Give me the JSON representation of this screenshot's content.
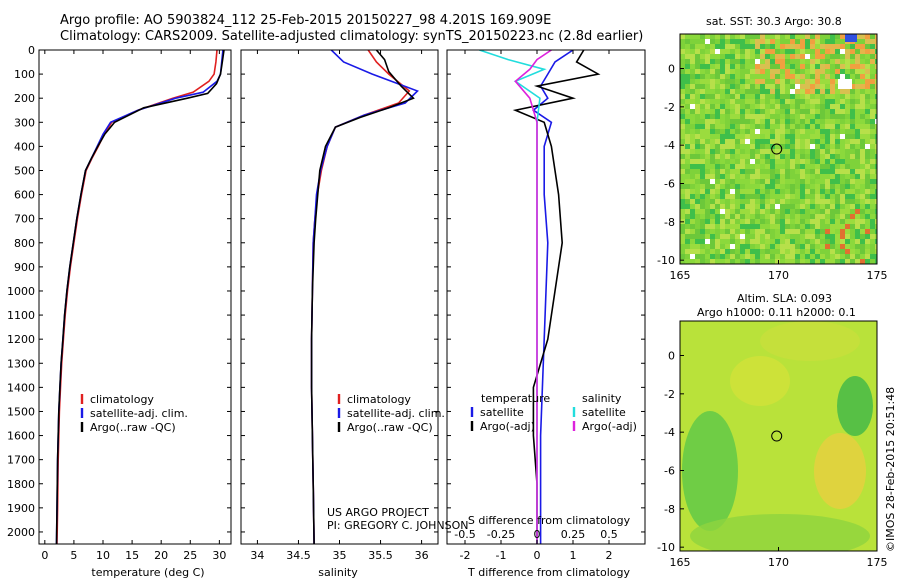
{
  "header": {
    "title_line1": "Argo profile: AO 5903824_112 25-Feb-2015 20150227_98 4.201S 169.909E",
    "title_line2": "Climatology: CARS2009. Satellite-adjusted climatology: synTS_20150223.nc (2.8d earlier)"
  },
  "credits": {
    "project": "US ARGO PROJECT",
    "pi": "PI: GREGORY C. JOHNSON",
    "stamp": "©IMOS 28-Feb-2015 20:51:48"
  },
  "colors": {
    "climatology": "#e02020",
    "satellite": "#1a1ae6",
    "argo": "#000000",
    "salinity_satellite": "#22dddd",
    "salinity_argo": "#dd22dd"
  },
  "chart_data": [
    {
      "id": "temperature",
      "type": "line",
      "xlabel": "temperature (deg C)",
      "ylabel": "",
      "xlim": [
        -1,
        32
      ],
      "ylim": [
        2050,
        0
      ],
      "xticks": [
        0,
        5,
        10,
        15,
        20,
        25,
        30
      ],
      "yticks": [
        0,
        100,
        200,
        300,
        400,
        500,
        600,
        700,
        800,
        900,
        1000,
        1100,
        1200,
        1300,
        1400,
        1500,
        1600,
        1700,
        1800,
        1900,
        2000
      ],
      "legend": [
        "climatology",
        "satellite-adj. clim.",
        "Argo(..raw -QC)"
      ],
      "series": [
        {
          "name": "climatology",
          "color": "#e02020",
          "x": [
            29.6,
            29.4,
            29.1,
            28.2,
            25.5,
            22.0,
            16.0,
            11.5,
            10.2,
            9.2,
            8.1,
            7.1,
            6.3,
            5.6,
            5.0,
            4.4,
            3.9,
            3.5,
            3.2,
            2.9,
            2.7,
            2.5,
            2.3,
            2.2,
            2.1
          ],
          "y": [
            0,
            50,
            100,
            130,
            175,
            200,
            250,
            300,
            350,
            400,
            450,
            500,
            600,
            700,
            800,
            900,
            1000,
            1100,
            1200,
            1300,
            1400,
            1500,
            1700,
            1900,
            2050
          ]
        },
        {
          "name": "satellite-adj. clim.",
          "color": "#1a1ae6",
          "x": [
            30.6,
            30.4,
            30.2,
            29.6,
            27.2,
            22.5,
            16.0,
            11.3,
            10.0,
            9.0,
            8.0,
            7.0,
            6.2,
            5.5,
            4.9,
            4.3,
            3.8,
            3.4,
            3.1,
            2.8,
            2.6,
            2.4,
            2.2,
            2.1,
            2.0
          ],
          "y": [
            0,
            50,
            100,
            130,
            175,
            200,
            250,
            300,
            350,
            400,
            450,
            500,
            600,
            700,
            800,
            900,
            1000,
            1100,
            1200,
            1300,
            1400,
            1500,
            1700,
            1900,
            2050
          ]
        },
        {
          "name": "Argo(..raw -QC)",
          "color": "#000000",
          "x": [
            30.8,
            30.5,
            30.2,
            29.5,
            28.0,
            24.5,
            17.0,
            12.0,
            10.3,
            9.1,
            8.0,
            7.0,
            6.2,
            5.5,
            4.9,
            4.3,
            3.8,
            3.4,
            3.1,
            2.8,
            2.6,
            2.4,
            2.2,
            2.1,
            2.0
          ],
          "y": [
            0,
            50,
            100,
            140,
            180,
            200,
            240,
            300,
            350,
            400,
            450,
            500,
            600,
            700,
            800,
            900,
            1000,
            1100,
            1200,
            1300,
            1400,
            1500,
            1700,
            1900,
            2050
          ]
        }
      ]
    },
    {
      "id": "salinity",
      "type": "line",
      "xlabel": "salinity",
      "ylabel": "",
      "xlim": [
        33.8,
        36.2
      ],
      "ylim": [
        2050,
        0
      ],
      "xticks": [
        34,
        34.5,
        35,
        35.5,
        36
      ],
      "xticklabels": [
        "34",
        "34.5",
        "35",
        "35.5",
        "36"
      ],
      "legend": [
        "climatology",
        "satellite-adj. clim.",
        "Argo(..raw -QC)"
      ],
      "series": [
        {
          "name": "climatology",
          "color": "#e02020",
          "x": [
            35.35,
            35.45,
            35.6,
            35.85,
            35.72,
            35.3,
            34.95,
            34.85,
            34.78,
            34.73,
            34.7,
            34.68,
            34.67,
            34.66,
            34.66,
            34.67,
            34.68,
            34.69
          ],
          "y": [
            0,
            50,
            100,
            170,
            220,
            270,
            320,
            400,
            500,
            600,
            700,
            800,
            1000,
            1200,
            1400,
            1600,
            1800,
            2050
          ]
        },
        {
          "name": "satellite-adj. clim.",
          "color": "#1a1ae6",
          "x": [
            34.9,
            35.05,
            35.4,
            35.95,
            35.8,
            35.3,
            34.95,
            34.85,
            34.77,
            34.72,
            34.7,
            34.68,
            34.67,
            34.66,
            34.66,
            34.67,
            34.68,
            34.69
          ],
          "y": [
            0,
            50,
            100,
            170,
            220,
            270,
            320,
            400,
            500,
            600,
            700,
            800,
            1000,
            1200,
            1400,
            1600,
            1800,
            2050
          ]
        },
        {
          "name": "Argo(..raw -QC)",
          "color": "#000000",
          "x": [
            35.45,
            35.55,
            35.6,
            35.75,
            35.9,
            35.6,
            35.25,
            34.95,
            34.83,
            34.76,
            34.71,
            34.69,
            34.67,
            34.66,
            34.66,
            34.67,
            34.68,
            34.69
          ],
          "y": [
            0,
            40,
            90,
            150,
            200,
            240,
            280,
            320,
            400,
            500,
            700,
            800,
            1000,
            1200,
            1400,
            1600,
            1800,
            2050
          ]
        }
      ]
    },
    {
      "id": "difference",
      "type": "line",
      "xlabel": "T difference from climatology",
      "xlabel_top": "S difference from climatology",
      "xlim": [
        -2.5,
        3.0
      ],
      "ylim": [
        2050,
        0
      ],
      "xticks_T": [
        -2,
        -1,
        0,
        1,
        2
      ],
      "xticks_S": [
        -0.5,
        -0.25,
        0,
        0.25,
        0.5
      ],
      "xticks_S_labels": [
        "-0.5",
        "-0.25",
        "0",
        "0.25",
        "0.5"
      ],
      "legend_T_title": "temperature",
      "legend_S_title": "salinity",
      "legend": [
        "satellite",
        "Argo(-adj)",
        "satellite",
        "Argo(-adj)"
      ],
      "series": [
        {
          "name": "satellite",
          "group": "temperature",
          "color": "#1a1ae6",
          "x": [
            1.0,
            0.5,
            0.3,
            0.1,
            0.3,
            -0.1,
            0.4,
            0.2,
            0.2,
            0.3,
            0.25,
            0.2,
            0.15,
            0.1,
            0.1,
            0.1
          ],
          "y": [
            0,
            50,
            100,
            150,
            200,
            250,
            300,
            400,
            600,
            800,
            1000,
            1200,
            1400,
            1600,
            1800,
            2050
          ]
        },
        {
          "name": "Argo(-adj)",
          "group": "temperature",
          "color": "#000000",
          "x": [
            1.3,
            1.1,
            1.7,
            0.0,
            1.0,
            -0.6,
            0.2,
            0.4,
            0.6,
            0.7,
            0.5,
            0.3,
            -0.1,
            -0.1,
            0.0,
            0.0
          ],
          "y": [
            0,
            50,
            100,
            150,
            200,
            250,
            300,
            400,
            600,
            800,
            1000,
            1200,
            1400,
            1600,
            1800,
            2050
          ]
        },
        {
          "name": "satellite",
          "group": "salinity",
          "color": "#22dddd",
          "x": [
            -0.4,
            -0.2,
            0.05,
            -0.15,
            0.02,
            0.0,
            0.0,
            0.0,
            0.0,
            0.0,
            0.0
          ],
          "y": [
            0,
            40,
            80,
            130,
            200,
            300,
            500,
            800,
            1200,
            1600,
            2050
          ]
        },
        {
          "name": "Argo(-adj)",
          "group": "salinity",
          "color": "#dd22dd",
          "x": [
            0.1,
            0.0,
            -0.05,
            -0.15,
            -0.05,
            0.0,
            0.0,
            0.0,
            0.0,
            0.0,
            0.0
          ],
          "y": [
            0,
            40,
            80,
            130,
            200,
            300,
            500,
            800,
            1200,
            1600,
            2050
          ]
        }
      ]
    },
    {
      "id": "sst_map",
      "type": "heatmap",
      "title": "sat. SST: 30.3 Argo: 30.8",
      "xlim": [
        165,
        175
      ],
      "ylim": [
        -10.2,
        1.8
      ],
      "xticks": [
        165,
        170,
        175
      ],
      "yticks": [
        0,
        -2,
        -4,
        -6,
        -8,
        -10
      ],
      "marker": {
        "lon": 169.909,
        "lat": -4.201
      }
    },
    {
      "id": "sla_map",
      "type": "heatmap",
      "title_line1": "Altim. SLA: 0.093",
      "title_line2": "Argo h1000: 0.11 h2000: 0.1",
      "xlim": [
        165,
        175
      ],
      "ylim": [
        -10.2,
        1.8
      ],
      "xticks": [
        165,
        170,
        175
      ],
      "yticks": [
        0,
        -2,
        -4,
        -6,
        -8,
        -10
      ],
      "marker": {
        "lon": 169.909,
        "lat": -4.201
      }
    }
  ]
}
